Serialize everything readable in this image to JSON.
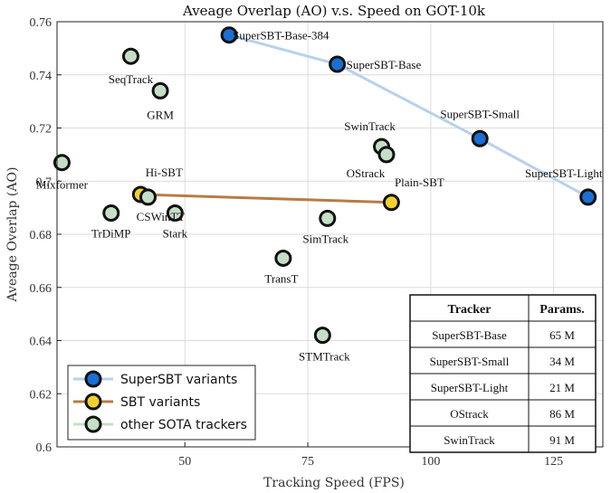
{
  "chart_data": {
    "type": "scatter",
    "title": "Aveage Overlap (AO) v.s. Speed on GOT-10k",
    "xlabel": "Tracking Speed (FPS)",
    "ylabel": "Aveage Overlap (AO)",
    "xlim": [
      24,
      135
    ],
    "ylim": [
      0.6,
      0.76
    ],
    "xticks": [
      50,
      75,
      100,
      125
    ],
    "yticks": [
      0.6,
      0.62,
      0.64,
      0.66,
      0.68,
      0.7,
      0.72,
      0.74,
      0.76
    ],
    "grid": true,
    "legend_position": "bottom-left",
    "series": [
      {
        "name": "SuperSBT variants",
        "color": "#1a6fd1",
        "line_color": "#b8d1ec",
        "points": [
          {
            "label": "SuperSBT-Base-384",
            "x": 59,
            "y": 0.755
          },
          {
            "label": "SuperSBT-Base",
            "x": 81,
            "y": 0.744
          },
          {
            "label": "SuperSBT-Small",
            "x": 110,
            "y": 0.716
          },
          {
            "label": "SuperSBT-Light",
            "x": 132,
            "y": 0.694
          }
        ]
      },
      {
        "name": "SBT variants",
        "color": "#f2d12e",
        "line_color": "#b87b45",
        "points": [
          {
            "label": "Hi-SBT",
            "x": 41,
            "y": 0.695
          },
          {
            "label": "Plain-SBT",
            "x": 92,
            "y": 0.692
          }
        ]
      },
      {
        "name": "other SOTA trackers",
        "color": "#c5dfc7",
        "line_color": "#c5dfc7",
        "points": [
          {
            "label": "SeqTrack",
            "x": 39,
            "y": 0.747
          },
          {
            "label": "GRM",
            "x": 45,
            "y": 0.734
          },
          {
            "label": "Mixformer",
            "x": 25,
            "y": 0.707
          },
          {
            "label": "CSWinTT",
            "x": 42.5,
            "y": 0.694
          },
          {
            "label": "Stark",
            "x": 48,
            "y": 0.688
          },
          {
            "label": "TrDiMP",
            "x": 35,
            "y": 0.688
          },
          {
            "label": "SwinTrack",
            "x": 90,
            "y": 0.713
          },
          {
            "label": "OStrack",
            "x": 91,
            "y": 0.71
          },
          {
            "label": "SimTrack",
            "x": 79,
            "y": 0.686
          },
          {
            "label": "TransT",
            "x": 70,
            "y": 0.671
          },
          {
            "label": "STMTrack",
            "x": 78,
            "y": 0.642
          }
        ]
      }
    ],
    "table": {
      "headers": [
        "Tracker",
        "Params."
      ],
      "rows": [
        [
          "SuperSBT-Base",
          "65 M"
        ],
        [
          "SuperSBT-Small",
          "34 M"
        ],
        [
          "SuperSBT-Light",
          "21 M"
        ],
        [
          "OStrack",
          "86 M"
        ],
        [
          "SwinTrack",
          "91 M"
        ]
      ]
    }
  }
}
